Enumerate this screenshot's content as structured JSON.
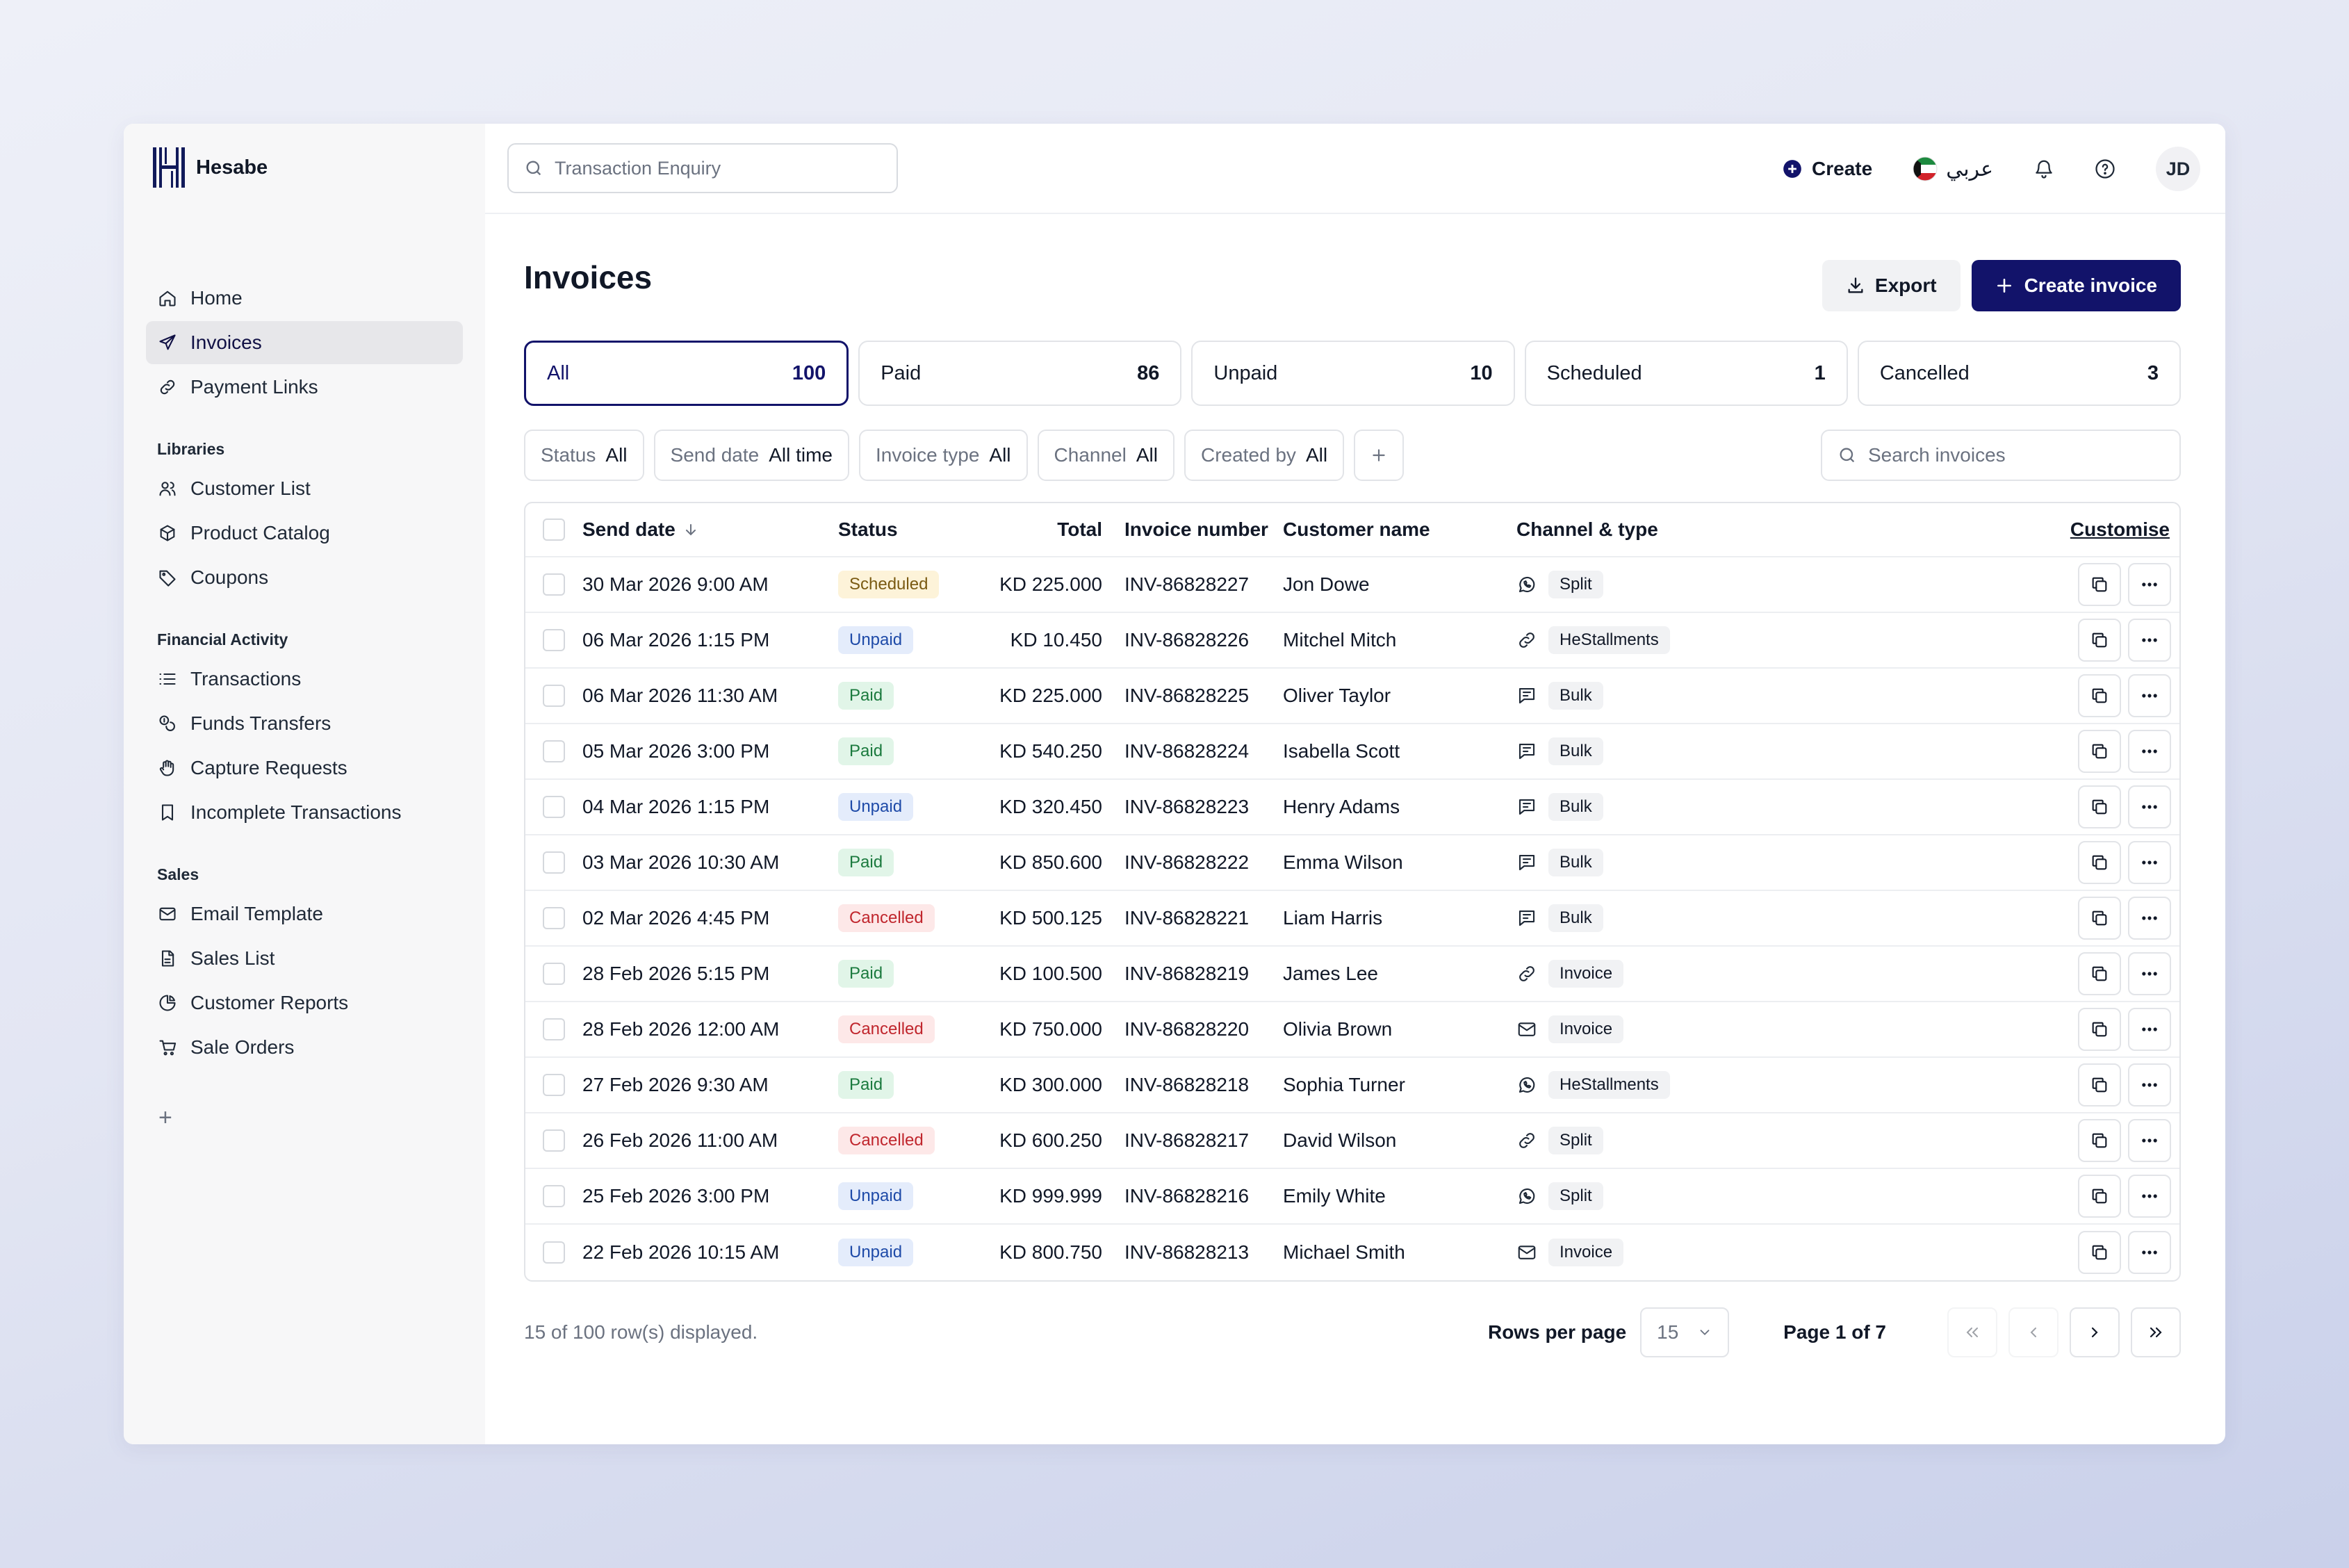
{
  "app": {
    "name": "Hesabe"
  },
  "topbar": {
    "search_placeholder": "Transaction Enquiry",
    "create_label": "Create",
    "language_label": "عربي",
    "avatar_initials": "JD"
  },
  "sidebar": {
    "main_items": [
      {
        "label": "Home",
        "icon": "home-icon",
        "active": false
      },
      {
        "label": "Invoices",
        "icon": "send-icon",
        "active": true
      },
      {
        "label": "Payment Links",
        "icon": "link-icon",
        "active": false
      }
    ],
    "sections": [
      {
        "title": "Libraries",
        "items": [
          {
            "label": "Customer List",
            "icon": "users-icon"
          },
          {
            "label": "Product Catalog",
            "icon": "box-icon"
          },
          {
            "label": "Coupons",
            "icon": "tag-icon"
          }
        ]
      },
      {
        "title": "Financial Activity",
        "items": [
          {
            "label": "Transactions",
            "icon": "list-icon"
          },
          {
            "label": "Funds Transfers",
            "icon": "coins-icon"
          },
          {
            "label": "Capture Requests",
            "icon": "hand-icon"
          },
          {
            "label": "Incomplete Transactions",
            "icon": "bookmark-icon"
          }
        ]
      },
      {
        "title": "Sales",
        "items": [
          {
            "label": "Email Template",
            "icon": "mail-icon"
          },
          {
            "label": "Sales List",
            "icon": "file-icon"
          },
          {
            "label": "Customer Reports",
            "icon": "pie-icon"
          },
          {
            "label": "Sale Orders",
            "icon": "cart-icon"
          }
        ]
      }
    ],
    "add_label": "+"
  },
  "page": {
    "title": "Invoices",
    "export_label": "Export",
    "create_invoice_label": "Create invoice"
  },
  "tabs": [
    {
      "label": "All",
      "count": "100",
      "active": true
    },
    {
      "label": "Paid",
      "count": "86",
      "active": false
    },
    {
      "label": "Unpaid",
      "count": "10",
      "active": false
    },
    {
      "label": "Scheduled",
      "count": "1",
      "active": false
    },
    {
      "label": "Cancelled",
      "count": "3",
      "active": false
    }
  ],
  "filters": [
    {
      "label": "Status",
      "value": "All"
    },
    {
      "label": "Send date",
      "value": "All time"
    },
    {
      "label": "Invoice type",
      "value": "All"
    },
    {
      "label": "Channel",
      "value": "All"
    },
    {
      "label": "Created by",
      "value": "All"
    }
  ],
  "search_invoices_placeholder": "Search invoices",
  "table": {
    "headers": {
      "send_date": "Send date",
      "status": "Status",
      "total": "Total",
      "invoice_number": "Invoice number",
      "customer_name": "Customer name",
      "channel_type": "Channel & type",
      "customise": "Customise"
    },
    "rows": [
      {
        "date": "30 Mar 2026 9:00 AM",
        "status": "Scheduled",
        "total": "KD 225.000",
        "invoice": "INV-86828227",
        "name": "Jon Dowe",
        "channel_icon": "whatsapp-icon",
        "type": "Split"
      },
      {
        "date": "06 Mar 2026 1:15 PM",
        "status": "Unpaid",
        "total": "KD 10.450",
        "invoice": "INV-86828226",
        "name": "Mitchel Mitch",
        "channel_icon": "link-icon",
        "type": "HeStallments"
      },
      {
        "date": "06 Mar 2026 11:30 AM",
        "status": "Paid",
        "total": "KD 225.000",
        "invoice": "INV-86828225",
        "name": "Oliver Taylor",
        "channel_icon": "sms-icon",
        "type": "Bulk"
      },
      {
        "date": "05 Mar 2026 3:00 PM",
        "status": "Paid",
        "total": "KD 540.250",
        "invoice": "INV-86828224",
        "name": "Isabella Scott",
        "channel_icon": "sms-icon",
        "type": "Bulk"
      },
      {
        "date": "04 Mar 2026 1:15 PM",
        "status": "Unpaid",
        "total": "KD 320.450",
        "invoice": "INV-86828223",
        "name": "Henry Adams",
        "channel_icon": "sms-icon",
        "type": "Bulk"
      },
      {
        "date": "03 Mar 2026 10:30 AM",
        "status": "Paid",
        "total": "KD 850.600",
        "invoice": "INV-86828222",
        "name": "Emma Wilson",
        "channel_icon": "sms-icon",
        "type": "Bulk"
      },
      {
        "date": "02 Mar 2026 4:45 PM",
        "status": "Cancelled",
        "total": "KD 500.125",
        "invoice": "INV-86828221",
        "name": "Liam Harris",
        "channel_icon": "sms-icon",
        "type": "Bulk"
      },
      {
        "date": "28 Feb 2026 5:15 PM",
        "status": "Paid",
        "total": "KD 100.500",
        "invoice": "INV-86828219",
        "name": "James Lee",
        "channel_icon": "link-icon",
        "type": "Invoice"
      },
      {
        "date": "28 Feb 2026 12:00 AM",
        "status": "Cancelled",
        "total": "KD 750.000",
        "invoice": "INV-86828220",
        "name": "Olivia Brown",
        "channel_icon": "mail-icon",
        "type": "Invoice"
      },
      {
        "date": "27 Feb 2026 9:30 AM",
        "status": "Paid",
        "total": "KD 300.000",
        "invoice": "INV-86828218",
        "name": "Sophia Turner",
        "channel_icon": "whatsapp-icon",
        "type": "HeStallments"
      },
      {
        "date": "26 Feb 2026 11:00 AM",
        "status": "Cancelled",
        "total": "KD 600.250",
        "invoice": "INV-86828217",
        "name": "David Wilson",
        "channel_icon": "link-icon",
        "type": "Split"
      },
      {
        "date": "25 Feb 2026 3:00 PM",
        "status": "Unpaid",
        "total": "KD 999.999",
        "invoice": "INV-86828216",
        "name": "Emily White",
        "channel_icon": "whatsapp-icon",
        "type": "Split"
      },
      {
        "date": "22 Feb 2026 10:15 AM",
        "status": "Unpaid",
        "total": "KD 800.750",
        "invoice": "INV-86828213",
        "name": "Michael Smith",
        "channel_icon": "mail-icon",
        "type": "Invoice"
      }
    ]
  },
  "footer": {
    "displayed_text": "15 of 100 row(s) displayed.",
    "rows_per_page_label": "Rows per page",
    "rows_per_page_value": "15",
    "page_label": "Page 1 of 7"
  }
}
